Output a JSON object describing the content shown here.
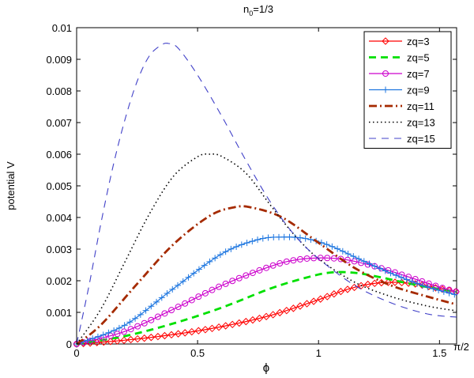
{
  "chart_data": {
    "type": "line",
    "title_main": "n",
    "title_sub": "0",
    "title_rest": "=1/3",
    "xlabel": "ϕ",
    "ylabel": "potential V",
    "xlim": [
      0,
      1.5708
    ],
    "ylim": [
      0,
      0.01
    ],
    "x_ticks": [
      {
        "value": 0,
        "label": "0"
      },
      {
        "value": 0.5,
        "label": "0.5"
      },
      {
        "value": 1,
        "label": "1"
      },
      {
        "value": 1.5,
        "label": "1.5"
      },
      {
        "value": 1.5708,
        "label": "π/2"
      }
    ],
    "y_ticks": [
      {
        "value": 0,
        "label": "0"
      },
      {
        "value": 0.001,
        "label": "0.001"
      },
      {
        "value": 0.002,
        "label": "0.002"
      },
      {
        "value": 0.003,
        "label": "0.003"
      },
      {
        "value": 0.004,
        "label": "0.004"
      },
      {
        "value": 0.005,
        "label": "0.005"
      },
      {
        "value": 0.006,
        "label": "0.006"
      },
      {
        "value": 0.007,
        "label": "0.007"
      },
      {
        "value": 0.008,
        "label": "0.008"
      },
      {
        "value": 0.009,
        "label": "0.009"
      },
      {
        "value": 0.01,
        "label": "0.01"
      }
    ],
    "grid": false,
    "legend_position": "top-right",
    "series": [
      {
        "name": "zq=3",
        "color": "#ff0000",
        "style": "solid",
        "marker": "diamond",
        "x": [
          0,
          0.2,
          0.4,
          0.6,
          0.8,
          1.0,
          1.1,
          1.2,
          1.3,
          1.4,
          1.5,
          1.57
        ],
        "y": [
          0,
          0.00012,
          0.0003,
          0.00055,
          0.0009,
          0.0014,
          0.00168,
          0.00188,
          0.00195,
          0.0019,
          0.00175,
          0.00165
        ]
      },
      {
        "name": "zq=5",
        "color": "#00e000",
        "style": "dashed",
        "marker": "none",
        "x": [
          0,
          0.2,
          0.4,
          0.6,
          0.8,
          0.95,
          1.05,
          1.15,
          1.25,
          1.35,
          1.45,
          1.57
        ],
        "y": [
          0,
          0.00025,
          0.00065,
          0.00115,
          0.00175,
          0.0021,
          0.00226,
          0.00225,
          0.00212,
          0.00195,
          0.0018,
          0.00165
        ]
      },
      {
        "name": "zq=7",
        "color": "#cc00cc",
        "style": "solid",
        "marker": "circle",
        "x": [
          0,
          0.2,
          0.4,
          0.6,
          0.8,
          0.9,
          1.0,
          1.1,
          1.2,
          1.3,
          1.4,
          1.5,
          1.57
        ],
        "y": [
          0,
          0.0004,
          0.0011,
          0.00185,
          0.00245,
          0.00265,
          0.00272,
          0.00268,
          0.00252,
          0.0023,
          0.00205,
          0.0018,
          0.00165
        ]
      },
      {
        "name": "zq=9",
        "color": "#1f77e0",
        "style": "solid",
        "marker": "plus",
        "x": [
          0,
          0.2,
          0.4,
          0.6,
          0.75,
          0.85,
          0.95,
          1.05,
          1.15,
          1.25,
          1.35,
          1.45,
          1.57
        ],
        "y": [
          0,
          0.0006,
          0.00175,
          0.00285,
          0.0033,
          0.00338,
          0.00333,
          0.0031,
          0.00275,
          0.0024,
          0.00208,
          0.0018,
          0.00155
        ]
      },
      {
        "name": "zq=11",
        "color": "#a52a00",
        "style": "dashdot",
        "marker": "none",
        "x": [
          0,
          0.1,
          0.25,
          0.4,
          0.55,
          0.65,
          0.72,
          0.85,
          1.0,
          1.15,
          1.3,
          1.45,
          1.57
        ],
        "y": [
          0,
          0.0006,
          0.0019,
          0.00315,
          0.00405,
          0.00432,
          0.00432,
          0.004,
          0.0032,
          0.0024,
          0.00185,
          0.0015,
          0.00125
        ]
      },
      {
        "name": "zq=13",
        "color": "#000000",
        "style": "dotted",
        "marker": "none",
        "x": [
          0,
          0.1,
          0.2,
          0.3,
          0.4,
          0.5,
          0.55,
          0.6,
          0.7,
          0.8,
          0.9,
          1.0,
          1.15,
          1.3,
          1.45,
          1.57
        ],
        "y": [
          0,
          0.0011,
          0.0026,
          0.0041,
          0.0053,
          0.00592,
          0.006,
          0.00593,
          0.0054,
          0.0044,
          0.00345,
          0.0027,
          0.00195,
          0.0015,
          0.0012,
          0.00105
        ]
      },
      {
        "name": "zq=15",
        "color": "#4040c8",
        "style": "longdash",
        "marker": "none",
        "x": [
          0,
          0.05,
          0.1,
          0.15,
          0.2,
          0.25,
          0.3,
          0.35,
          0.38,
          0.42,
          0.5,
          0.6,
          0.7,
          0.8,
          0.9,
          1.0,
          1.15,
          1.3,
          1.45,
          1.57
        ],
        "y": [
          0,
          0.0018,
          0.0038,
          0.0056,
          0.0071,
          0.0083,
          0.0091,
          0.00945,
          0.0095,
          0.00935,
          0.0085,
          0.0072,
          0.0058,
          0.0045,
          0.00345,
          0.0027,
          0.00185,
          0.0013,
          0.00095,
          0.00085
        ]
      }
    ]
  }
}
